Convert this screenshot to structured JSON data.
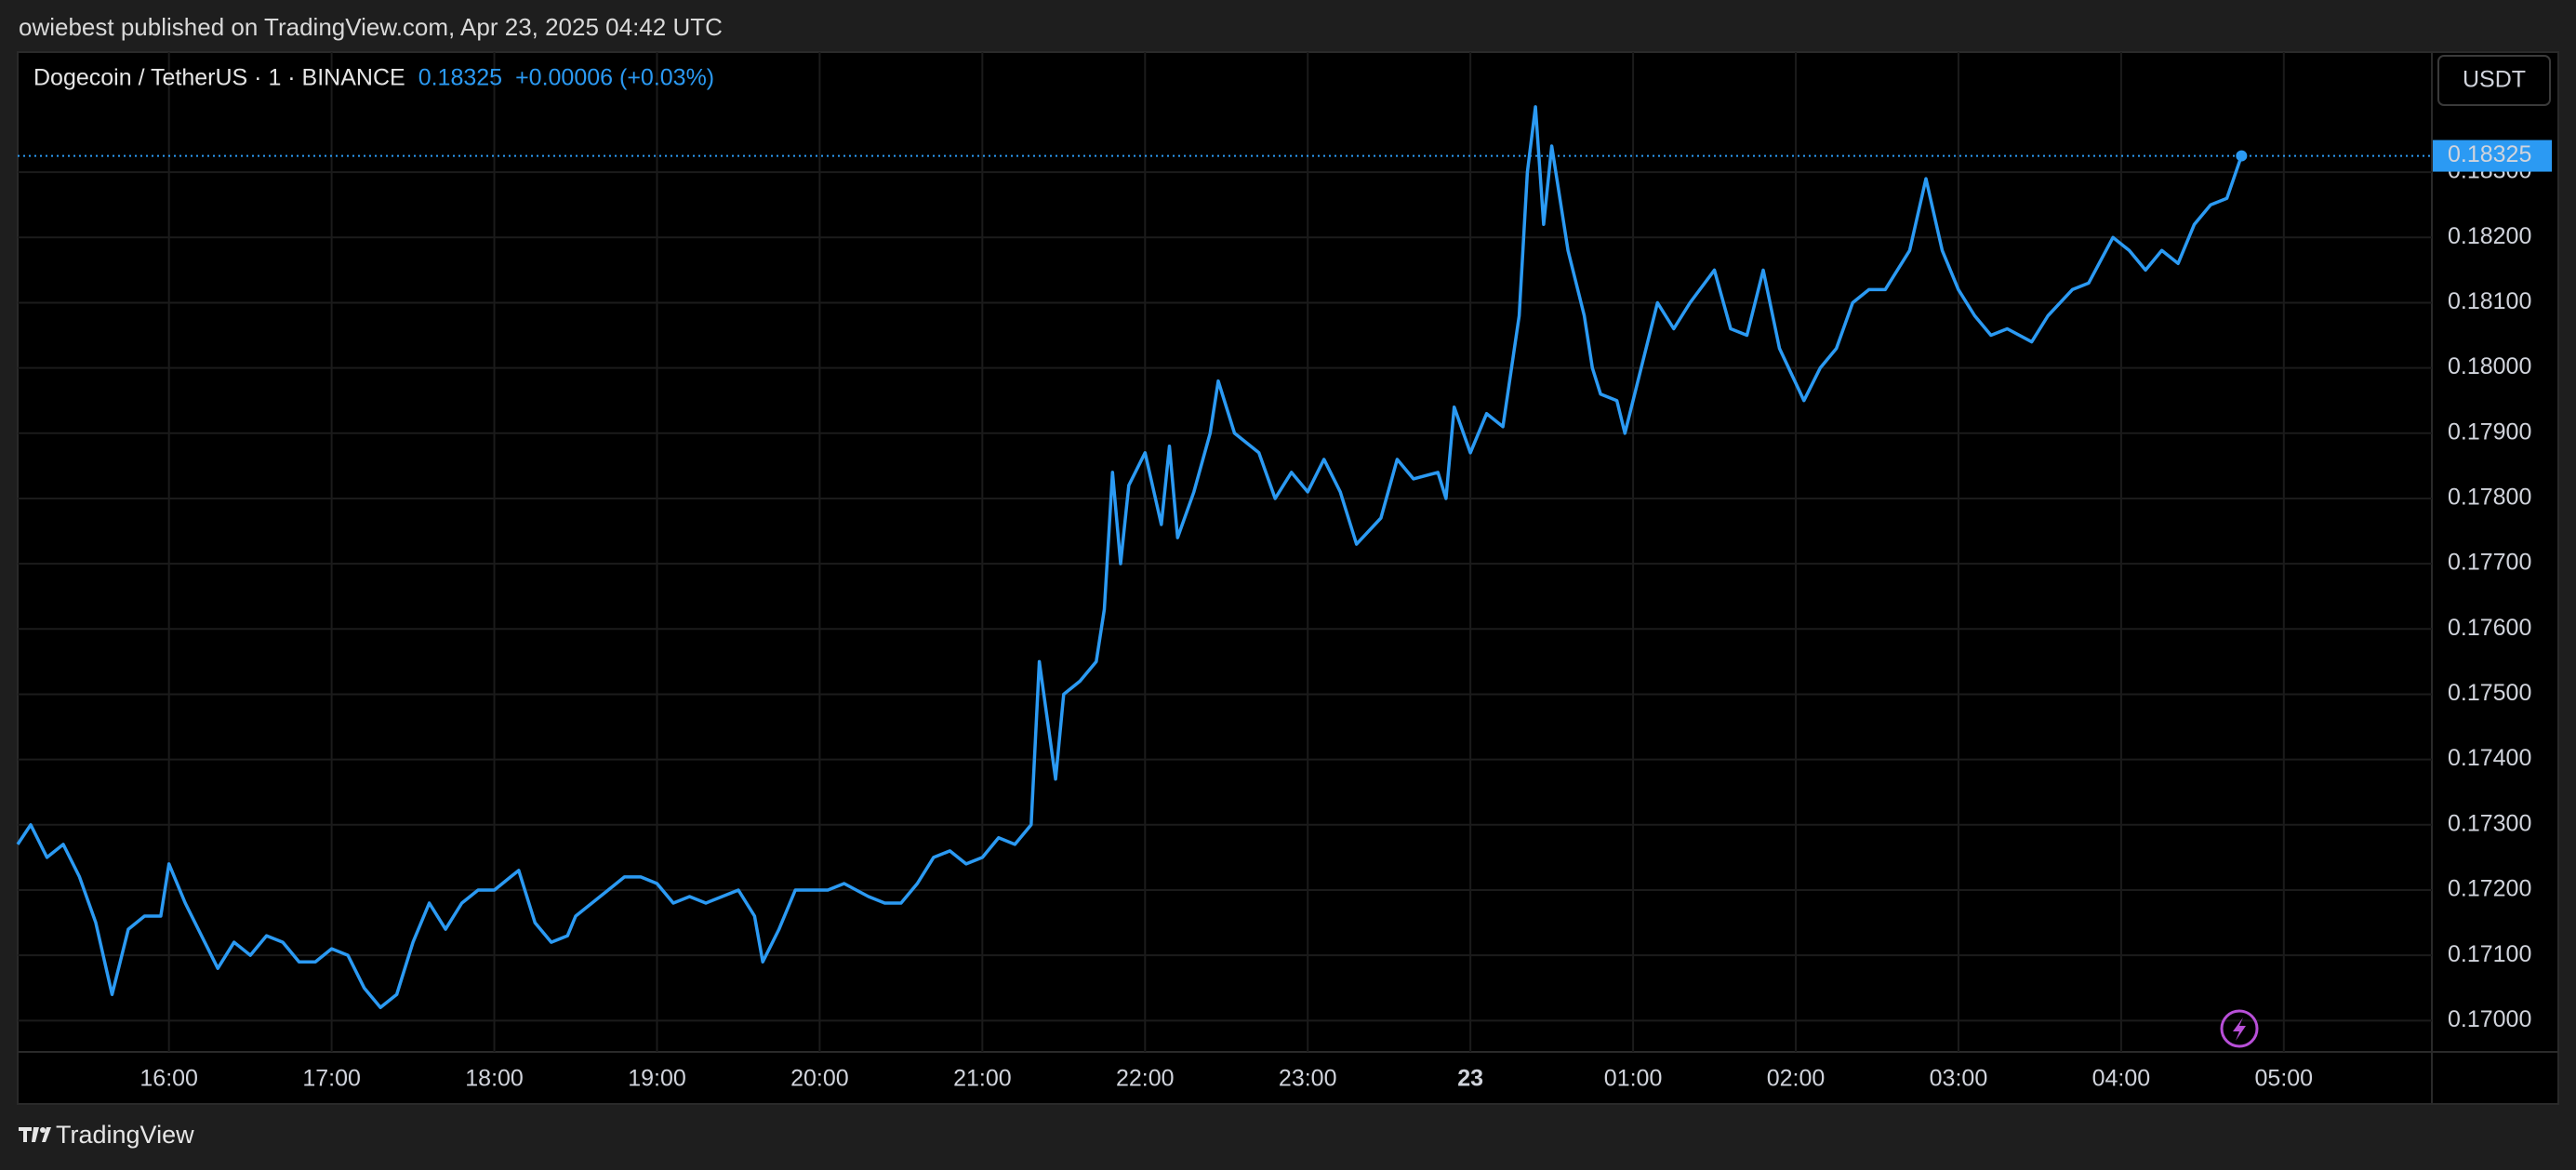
{
  "publisher_note": "owiebest published on TradingView.com, Apr 23, 2025 04:42 UTC",
  "footer_brand": "TradingView",
  "currency_button": "USDT",
  "chart_data": {
    "type": "line",
    "symbol": "Dogecoin / TetherUS · 1 · BINANCE",
    "change": "+0.00006 (+0.03%)",
    "last_price": {
      "value": 0.18325,
      "label": "0.18325"
    },
    "color": "#2b9af3",
    "grid": true,
    "xlim": [
      15.07,
      29.91
    ],
    "ylim": [
      0.16952,
      0.18484
    ],
    "xticks": [
      {
        "value": 16,
        "label": "16:00"
      },
      {
        "value": 17,
        "label": "17:00"
      },
      {
        "value": 18,
        "label": "18:00"
      },
      {
        "value": 19,
        "label": "19:00"
      },
      {
        "value": 20,
        "label": "20:00"
      },
      {
        "value": 21,
        "label": "21:00"
      },
      {
        "value": 22,
        "label": "22:00"
      },
      {
        "value": 23,
        "label": "23:00"
      },
      {
        "value": 24,
        "label": "23"
      },
      {
        "value": 25,
        "label": "01:00"
      },
      {
        "value": 26,
        "label": "02:00"
      },
      {
        "value": 27,
        "label": "03:00"
      },
      {
        "value": 28,
        "label": "04:00"
      },
      {
        "value": 29,
        "label": "05:00"
      }
    ],
    "yticks": [
      {
        "value": 0.17,
        "label": "0.17000"
      },
      {
        "value": 0.171,
        "label": "0.17100"
      },
      {
        "value": 0.172,
        "label": "0.17200"
      },
      {
        "value": 0.173,
        "label": "0.17300"
      },
      {
        "value": 0.174,
        "label": "0.17400"
      },
      {
        "value": 0.175,
        "label": "0.17500"
      },
      {
        "value": 0.176,
        "label": "0.17600"
      },
      {
        "value": 0.177,
        "label": "0.17700"
      },
      {
        "value": 0.178,
        "label": "0.17800"
      },
      {
        "value": 0.179,
        "label": "0.17900"
      },
      {
        "value": 0.18,
        "label": "0.18000"
      },
      {
        "value": 0.181,
        "label": "0.18100"
      },
      {
        "value": 0.182,
        "label": "0.18200"
      },
      {
        "value": 0.183,
        "label": "0.18300"
      }
    ],
    "x": [
      15.07,
      15.15,
      15.25,
      15.35,
      15.45,
      15.55,
      15.65,
      15.75,
      15.85,
      15.95,
      16.0,
      16.1,
      16.2,
      16.3,
      16.4,
      16.5,
      16.6,
      16.7,
      16.8,
      16.9,
      17.0,
      17.1,
      17.2,
      17.3,
      17.4,
      17.5,
      17.6,
      17.7,
      17.8,
      17.9,
      18.0,
      18.1,
      18.15,
      18.25,
      18.35,
      18.45,
      18.5,
      18.6,
      18.7,
      18.8,
      18.9,
      19.0,
      19.1,
      19.2,
      19.3,
      19.4,
      19.5,
      19.6,
      19.65,
      19.75,
      19.85,
      19.95,
      20.05,
      20.15,
      20.3,
      20.4,
      20.5,
      20.6,
      20.7,
      20.8,
      20.9,
      21.0,
      21.1,
      21.2,
      21.3,
      21.35,
      21.45,
      21.5,
      21.6,
      21.7,
      21.75,
      21.8,
      21.85,
      21.9,
      22.0,
      22.1,
      22.15,
      22.2,
      22.3,
      22.4,
      22.45,
      22.55,
      22.7,
      22.8,
      22.9,
      23.0,
      23.1,
      23.2,
      23.3,
      23.45,
      23.55,
      23.65,
      23.8,
      23.85,
      23.9,
      24.0,
      24.1,
      24.2,
      24.3,
      24.35,
      24.4,
      24.45,
      24.5,
      24.6,
      24.7,
      24.75,
      24.8,
      24.9,
      24.95,
      25.05,
      25.15,
      25.25,
      25.35,
      25.5,
      25.6,
      25.7,
      25.8,
      25.9,
      26.05,
      26.15,
      26.25,
      26.35,
      26.45,
      26.55,
      26.7,
      26.8,
      26.9,
      27.0,
      27.1,
      27.2,
      27.3,
      27.45,
      27.55,
      27.7,
      27.8,
      27.95,
      28.05,
      28.15,
      28.25,
      28.35,
      28.45,
      28.55,
      28.65,
      28.74
    ],
    "values": [
      0.1727,
      0.173,
      0.1725,
      0.1727,
      0.1722,
      0.1715,
      0.1704,
      0.1714,
      0.1716,
      0.1716,
      0.1724,
      0.1718,
      0.1713,
      0.1708,
      0.1712,
      0.171,
      0.1713,
      0.1712,
      0.1709,
      0.1709,
      0.1711,
      0.171,
      0.1705,
      0.1702,
      0.1704,
      0.1712,
      0.1718,
      0.1714,
      0.1718,
      0.172,
      0.172,
      0.1722,
      0.1723,
      0.1715,
      0.1712,
      0.1713,
      0.1716,
      0.1718,
      0.172,
      0.1722,
      0.1722,
      0.1721,
      0.1718,
      0.1719,
      0.1718,
      0.1719,
      0.172,
      0.1716,
      0.1709,
      0.1714,
      0.172,
      0.172,
      0.172,
      0.1721,
      0.1719,
      0.1718,
      0.1718,
      0.1721,
      0.1725,
      0.1726,
      0.1724,
      0.1725,
      0.1728,
      0.1727,
      0.173,
      0.1755,
      0.1737,
      0.175,
      0.1752,
      0.1755,
      0.1763,
      0.1784,
      0.177,
      0.1782,
      0.1787,
      0.1776,
      0.1788,
      0.1774,
      0.1781,
      0.179,
      0.1798,
      0.179,
      0.1787,
      0.178,
      0.1784,
      0.1781,
      0.1786,
      0.1781,
      0.1773,
      0.1777,
      0.1786,
      0.1783,
      0.1784,
      0.178,
      0.1794,
      0.1787,
      0.1793,
      0.1791,
      0.1808,
      0.183,
      0.184,
      0.1822,
      0.1834,
      0.1818,
      0.1808,
      0.18,
      0.1796,
      0.1795,
      0.179,
      0.18,
      0.181,
      0.1806,
      0.181,
      0.1815,
      0.1806,
      0.1805,
      0.1815,
      0.1803,
      0.1795,
      0.18,
      0.1803,
      0.181,
      0.1812,
      0.1812,
      0.1818,
      0.1829,
      0.1818,
      0.1812,
      0.1808,
      0.1805,
      0.1806,
      0.1804,
      0.1808,
      0.1812,
      0.1813,
      0.182,
      0.1818,
      0.1815,
      0.1818,
      0.1816,
      0.1822,
      0.1825,
      0.1826,
      0.18325
    ]
  }
}
